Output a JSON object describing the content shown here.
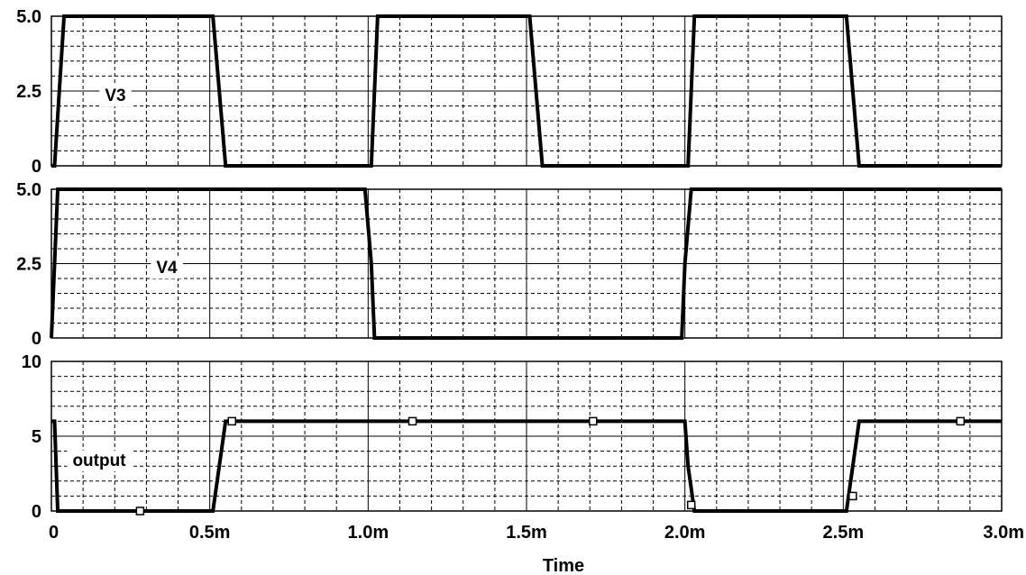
{
  "chart_data": [
    {
      "type": "line",
      "series": [
        {
          "name": "V3",
          "x": [
            0,
            0.01,
            0.04,
            0.06,
            0.51,
            0.53,
            0.55,
            1.01,
            1.03,
            1.05,
            1.51,
            1.53,
            1.55,
            2.01,
            2.03,
            2.05,
            2.51,
            2.53,
            2.55,
            3.0
          ],
          "values": [
            0,
            0,
            5,
            5,
            5,
            2.5,
            0,
            0,
            5,
            5,
            5,
            2.5,
            0,
            0,
            5,
            5,
            5,
            2.5,
            0,
            0
          ]
        }
      ],
      "y_ticks": [
        "5.0",
        "2.5",
        "0"
      ],
      "ylim": [
        0,
        5
      ],
      "xlim": [
        0,
        3
      ],
      "grid": true
    },
    {
      "type": "line",
      "series": [
        {
          "name": "V4",
          "x": [
            0,
            0.01,
            0.02,
            0.99,
            1.01,
            1.02,
            1.99,
            2.0,
            2.02,
            3.0
          ],
          "values": [
            0,
            2.5,
            5,
            5,
            2.5,
            0,
            0,
            2.5,
            5,
            5
          ]
        }
      ],
      "y_ticks": [
        "5.0",
        "2.5",
        "0"
      ],
      "ylim": [
        0,
        5
      ],
      "xlim": [
        0,
        3
      ],
      "grid": true
    },
    {
      "type": "line",
      "series": [
        {
          "name": "output",
          "x": [
            0,
            0.01,
            0.02,
            0.51,
            0.53,
            0.55,
            2.0,
            2.01,
            2.03,
            2.51,
            2.53,
            2.55,
            3.0
          ],
          "values": [
            6,
            6,
            0,
            0,
            3,
            6,
            6,
            3,
            0,
            0,
            3,
            6,
            6
          ]
        }
      ],
      "markers": {
        "x": [
          0.28,
          0.57,
          1.14,
          1.71,
          2.02,
          2.53,
          2.87
        ],
        "values": [
          0,
          6,
          6,
          6,
          0.4,
          1,
          6
        ]
      },
      "y_ticks": [
        "10",
        "5",
        "0"
      ],
      "ylim": [
        0,
        10
      ],
      "xlim": [
        0,
        3
      ],
      "grid": true
    }
  ],
  "x_tick_labels": [
    "0",
    "0.5m",
    "1.0m",
    "1.5m",
    "2.0m",
    "2.5m",
    "3.0m"
  ],
  "xlabel": "Time"
}
